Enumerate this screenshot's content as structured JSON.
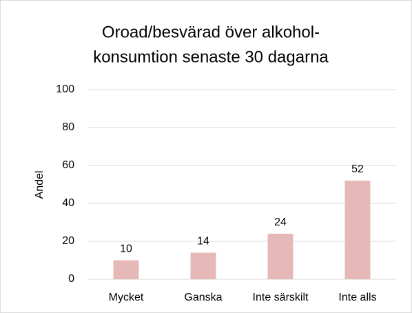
{
  "chart_data": {
    "type": "bar",
    "title": [
      "Oroad/besvärad över alkohol-",
      "konsumtion senaste 30 dagarna"
    ],
    "y_label": "Andel",
    "categories": [
      "Mycket",
      "Ganska",
      "Inte särskilt",
      "Inte alls"
    ],
    "values": [
      10,
      14,
      24,
      52
    ],
    "color": "#e6b9b8",
    "ylim": [
      0,
      100
    ],
    "yticks": [
      0,
      20,
      40,
      60,
      80,
      100
    ],
    "grid": true
  }
}
